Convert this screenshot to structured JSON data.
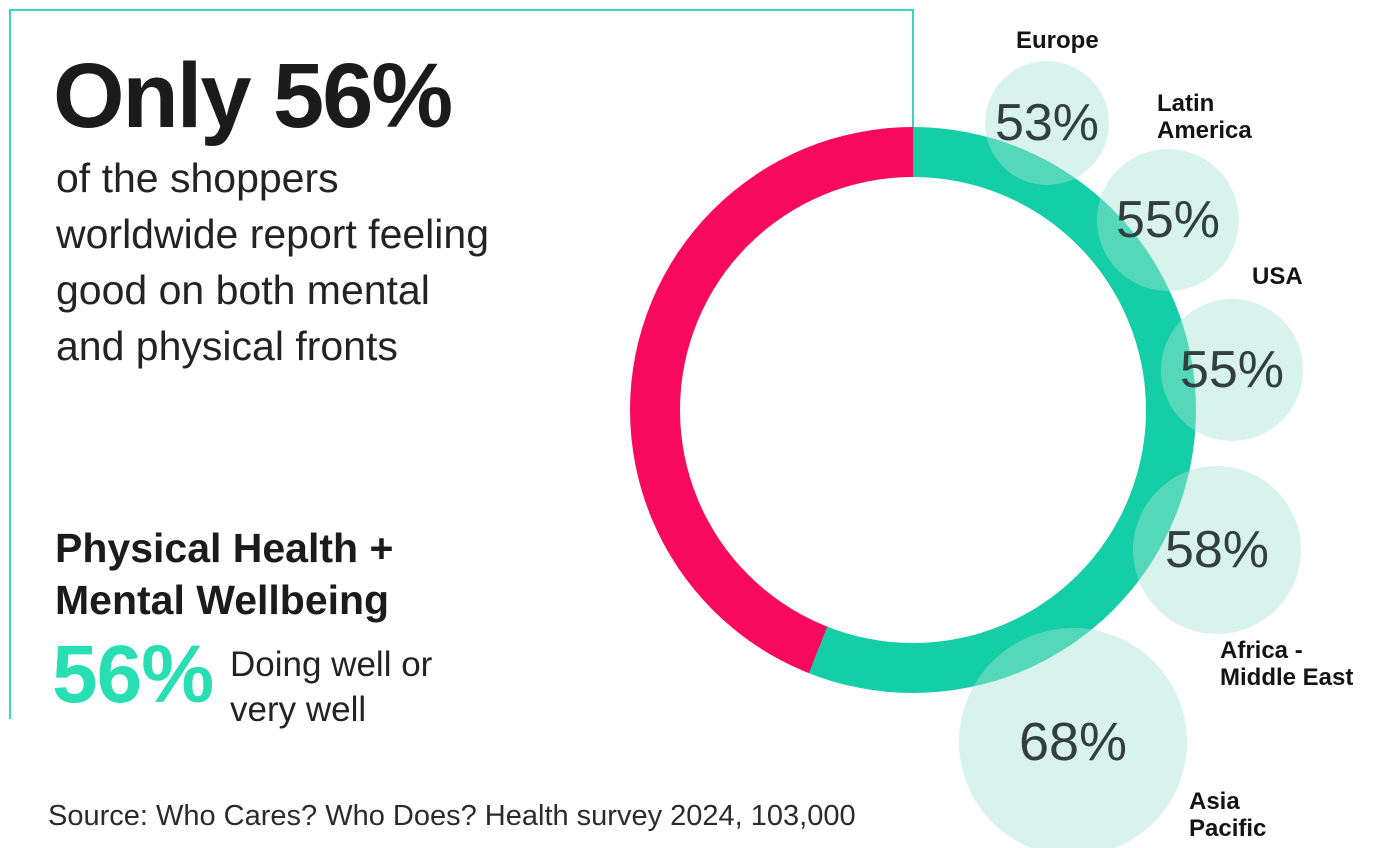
{
  "colors": {
    "donut_teal": "#13CEA6",
    "donut_pink": "#F70A5D",
    "bubble_mint": "#D7F3EB",
    "frame_teal": "#3BD6C2",
    "metric_teal": "#28DEB3"
  },
  "headline": {
    "title": "Only 56%",
    "lines": [
      "of the shoppers",
      "worldwide report feeling",
      "good on both mental",
      "and physical fronts"
    ]
  },
  "metric": {
    "title_lines": [
      "Physical Health +",
      "Mental Wellbeing"
    ],
    "value": "56%",
    "desc_lines": [
      "Doing well or",
      "very well"
    ]
  },
  "source": "Source: Who Cares? Who Does? Health survey 2024, 103,000",
  "chart_data": {
    "type": "pie",
    "title": "Physical Health + Mental Wellbeing",
    "subtitle": "Only 56% of the shoppers worldwide report feeling good on both mental and physical fronts",
    "units": "percent of shoppers doing well or very well",
    "donut": {
      "start": "top, clockwise",
      "series": [
        {
          "name": "Doing well or very well",
          "value": 56,
          "color": "#13CEA6"
        },
        {
          "name": "Remainder",
          "value": 44,
          "color": "#F70A5D"
        }
      ]
    },
    "regions": [
      {
        "label": "Europe",
        "label_lines": [
          "Europe"
        ],
        "value": 53,
        "display": "53%"
      },
      {
        "label": "Latin America",
        "label_lines": [
          "Latin",
          "America"
        ],
        "value": 55,
        "display": "55%"
      },
      {
        "label": "USA",
        "label_lines": [
          "USA"
        ],
        "value": 55,
        "display": "55%"
      },
      {
        "label": "Africa - Middle East",
        "label_lines": [
          "Africa -",
          "Middle East"
        ],
        "value": 58,
        "display": "58%"
      },
      {
        "label": "Asia Pacific",
        "label_lines": [
          "Asia",
          "Pacific"
        ],
        "value": 68,
        "display": "68%"
      }
    ]
  }
}
